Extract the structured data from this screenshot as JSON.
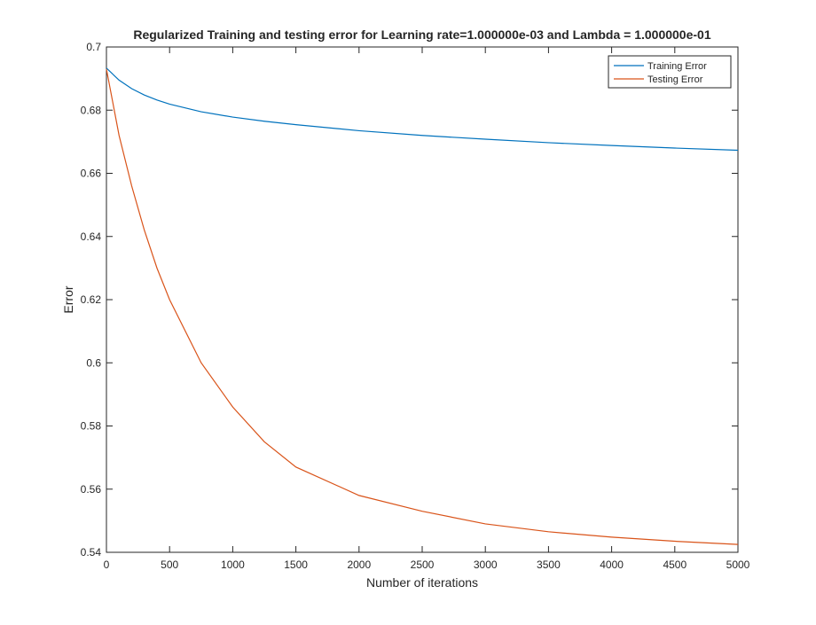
{
  "chart_data": {
    "type": "line",
    "title": "Regularized Training and testing error for Learning rate=1.000000e-03 and Lambda = 1.000000e-01",
    "xlabel": "Number of iterations",
    "ylabel": "Error",
    "xlim": [
      0,
      5000
    ],
    "ylim": [
      0.54,
      0.7
    ],
    "xticks": [
      "0",
      "500",
      "1000",
      "1500",
      "2000",
      "2500",
      "3000",
      "3500",
      "4000",
      "4500",
      "5000"
    ],
    "yticks": [
      "0.54",
      "0.56",
      "0.58",
      "0.6",
      "0.62",
      "0.64",
      "0.66",
      "0.68",
      "0.7"
    ],
    "grid": false,
    "legend_position": "top-right",
    "series": [
      {
        "name": "Training Error",
        "color": "#0072BD",
        "x": [
          0,
          100,
          200,
          300,
          400,
          500,
          750,
          1000,
          1250,
          1500,
          2000,
          2500,
          3000,
          3500,
          4000,
          4500,
          5000
        ],
        "y": [
          0.6933,
          0.6895,
          0.6868,
          0.6848,
          0.6832,
          0.6819,
          0.6795,
          0.6778,
          0.6765,
          0.6754,
          0.6735,
          0.672,
          0.6708,
          0.6697,
          0.6688,
          0.668,
          0.6673
        ]
      },
      {
        "name": "Testing Error",
        "color": "#D95319",
        "x": [
          0,
          100,
          200,
          300,
          400,
          500,
          750,
          1000,
          1250,
          1500,
          2000,
          2500,
          3000,
          3500,
          4000,
          4500,
          5000
        ],
        "y": [
          0.693,
          0.672,
          0.656,
          0.642,
          0.63,
          0.62,
          0.6,
          0.586,
          0.575,
          0.567,
          0.558,
          0.553,
          0.549,
          0.5465,
          0.5448,
          0.5435,
          0.5425
        ]
      }
    ]
  }
}
